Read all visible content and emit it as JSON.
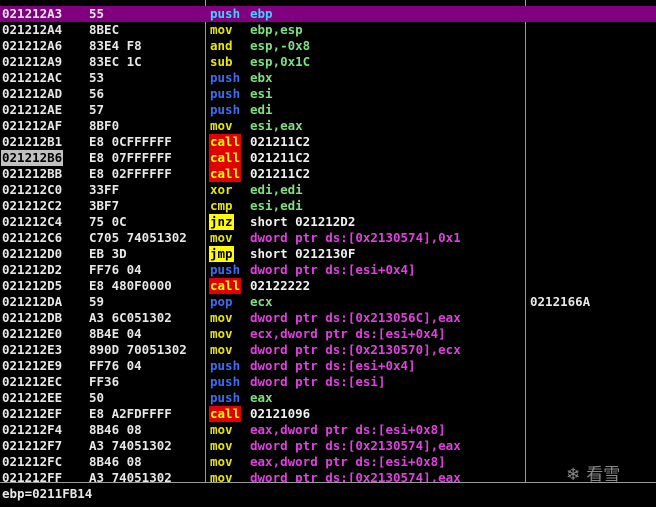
{
  "disassembly": {
    "selected_row": 0,
    "marked_address_row": 9,
    "rows": [
      {
        "addr": "021212A3",
        "hex": "55",
        "mnem": "push",
        "ops": "ebp"
      },
      {
        "addr": "021212A4",
        "hex": "8BEC",
        "mnem": "mov",
        "ops": "ebp,esp"
      },
      {
        "addr": "021212A6",
        "hex": "83E4 F8",
        "mnem": "and",
        "ops": "esp,-0x8"
      },
      {
        "addr": "021212A9",
        "hex": "83EC 1C",
        "mnem": "sub",
        "ops": "esp,0x1C"
      },
      {
        "addr": "021212AC",
        "hex": "53",
        "mnem": "push",
        "ops": "ebx"
      },
      {
        "addr": "021212AD",
        "hex": "56",
        "mnem": "push",
        "ops": "esi"
      },
      {
        "addr": "021212AE",
        "hex": "57",
        "mnem": "push",
        "ops": "edi"
      },
      {
        "addr": "021212AF",
        "hex": "8BF0",
        "mnem": "mov",
        "ops": "esi,eax"
      },
      {
        "addr": "021212B1",
        "hex": "E8 0CFFFFFF",
        "mnem": "call",
        "ops": "021211C2"
      },
      {
        "addr": "021212B6",
        "hex": "E8 07FFFFFF",
        "mnem": "call",
        "ops": "021211C2"
      },
      {
        "addr": "021212BB",
        "hex": "E8 02FFFFFF",
        "mnem": "call",
        "ops": "021211C2"
      },
      {
        "addr": "021212C0",
        "hex": "33FF",
        "mnem": "xor",
        "ops": "edi,edi"
      },
      {
        "addr": "021212C2",
        "hex": "3BF7",
        "mnem": "cmp",
        "ops": "esi,edi"
      },
      {
        "addr": "021212C4",
        "hex": "75 0C",
        "mnem": "jnz",
        "ops": "short 021212D2"
      },
      {
        "addr": "021212C6",
        "hex": "C705 74051302",
        "mnem": "mov",
        "ops": "dword ptr ds:[0x2130574],0x1"
      },
      {
        "addr": "021212D0",
        "hex": "EB 3D",
        "mnem": "jmp",
        "ops": "short 0212130F"
      },
      {
        "addr": "021212D2",
        "hex": "FF76 04",
        "mnem": "push",
        "ops": "dword ptr ds:[esi+0x4]"
      },
      {
        "addr": "021212D5",
        "hex": "E8 480F0000",
        "mnem": "call",
        "ops": "02122222"
      },
      {
        "addr": "021212DA",
        "hex": "59",
        "mnem": "pop",
        "ops": "ecx",
        "comment": "0212166A"
      },
      {
        "addr": "021212DB",
        "hex": "A3 6C051302",
        "mnem": "mov",
        "ops": "dword ptr ds:[0x213056C],eax"
      },
      {
        "addr": "021212E0",
        "hex": "8B4E 04",
        "mnem": "mov",
        "ops": "ecx,dword ptr ds:[esi+0x4]"
      },
      {
        "addr": "021212E3",
        "hex": "890D 70051302",
        "mnem": "mov",
        "ops": "dword ptr ds:[0x2130570],ecx"
      },
      {
        "addr": "021212E9",
        "hex": "FF76 04",
        "mnem": "push",
        "ops": "dword ptr ds:[esi+0x4]"
      },
      {
        "addr": "021212EC",
        "hex": "FF36",
        "mnem": "push",
        "ops": "dword ptr ds:[esi]"
      },
      {
        "addr": "021212EE",
        "hex": "50",
        "mnem": "push",
        "ops": "eax"
      },
      {
        "addr": "021212EF",
        "hex": "E8 A2FDFFFF",
        "mnem": "call",
        "ops": "02121096"
      },
      {
        "addr": "021212F4",
        "hex": "8B46 08",
        "mnem": "mov",
        "ops": "eax,dword ptr ds:[esi+0x8]"
      },
      {
        "addr": "021212F7",
        "hex": "A3 74051302",
        "mnem": "mov",
        "ops": "dword ptr ds:[0x2130574],eax"
      },
      {
        "addr": "021212FC",
        "hex": "8B46 08",
        "mnem": "mov",
        "ops": "eax,dword ptr ds:[esi+0x8]"
      },
      {
        "addr": "021212FF",
        "hex": "A3 74051302",
        "mnem": "mov",
        "ops": "dword ptr ds:[0x2130574],eax"
      }
    ]
  },
  "status": "ebp=0211FB14",
  "watermark": "看雪"
}
